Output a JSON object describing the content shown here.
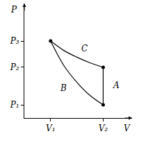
{
  "chart_data": {
    "type": "line",
    "xlabel": "V",
    "ylabel": "P",
    "color": "#000000",
    "grid": false,
    "xlim": [
      0.5,
      2.55
    ],
    "ylim": [
      0.65,
      3.7
    ],
    "xticks": [
      {
        "value": 1,
        "label": "V₁"
      },
      {
        "value": 2,
        "label": "V₂"
      }
    ],
    "yticks": [
      {
        "value": 1,
        "label": "P₁"
      },
      {
        "value": 2,
        "label": "P₂"
      },
      {
        "value": 2.7,
        "label": "P₃"
      }
    ],
    "series": [
      {
        "type": "line",
        "x": [
          1,
          1.25,
          1.5,
          1.75,
          2
        ],
        "values": [
          2.7,
          2.45,
          2.27,
          2.12,
          2.0
        ]
      },
      {
        "type": "line",
        "x": [
          1,
          1.25,
          1.5,
          1.75,
          2
        ],
        "values": [
          2.7,
          2.05,
          1.6,
          1.25,
          1.0
        ]
      },
      {
        "type": "line",
        "x": [
          2,
          2
        ],
        "values": [
          1.0,
          2.0
        ]
      },
      {
        "type": "scatter",
        "marker": "circle",
        "x": [
          1,
          2,
          2
        ],
        "values": [
          2.7,
          2.0,
          1.0
        ]
      }
    ],
    "annotations": [
      {
        "text": "C",
        "x": 1.64,
        "y": 2.49
      },
      {
        "text": "B",
        "x": 1.24,
        "y": 1.45
      },
      {
        "text": "A",
        "x": 2.24,
        "y": 1.51
      }
    ]
  }
}
